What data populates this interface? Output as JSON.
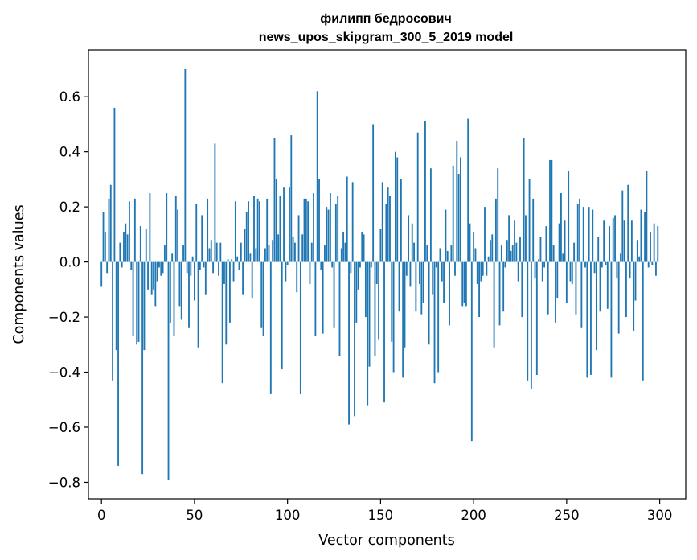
{
  "chart_data": {
    "type": "bar",
    "title_line1": "филипп бедросович",
    "title_line2": "news_upos_skipgram_300_5_2019 model",
    "xlabel": "Vector components",
    "ylabel": "Components values",
    "xlim": [
      -7,
      314
    ],
    "ylim": [
      -0.86,
      0.77
    ],
    "x_ticks": [
      {
        "value": 0,
        "label": "0"
      },
      {
        "value": 50,
        "label": "50"
      },
      {
        "value": 100,
        "label": "100"
      },
      {
        "value": 150,
        "label": "150"
      },
      {
        "value": 200,
        "label": "200"
      },
      {
        "value": 250,
        "label": "250"
      },
      {
        "value": 300,
        "label": "300"
      }
    ],
    "y_ticks": [
      {
        "value": 0.6,
        "label": "0.6"
      },
      {
        "value": 0.4,
        "label": "0.4"
      },
      {
        "value": 0.2,
        "label": "0.2"
      },
      {
        "value": 0.0,
        "label": "0.0"
      },
      {
        "value": -0.2,
        "label": "−0.2"
      },
      {
        "value": -0.4,
        "label": "−0.4"
      },
      {
        "value": -0.6,
        "label": "−0.6"
      },
      {
        "value": -0.8,
        "label": "−0.8"
      }
    ],
    "grid": false,
    "bar_color": "#1f77b4",
    "values": [
      -0.09,
      0.18,
      0.11,
      -0.04,
      0.23,
      0.28,
      -0.43,
      0.56,
      -0.32,
      -0.74,
      0.07,
      -0.02,
      0.11,
      0.14,
      0.1,
      0.22,
      -0.03,
      -0.27,
      0.23,
      -0.3,
      -0.29,
      0.13,
      -0.77,
      -0.32,
      0.12,
      -0.1,
      0.25,
      -0.12,
      -0.1,
      -0.16,
      -0.07,
      -0.02,
      -0.05,
      -0.04,
      0.06,
      0.25,
      -0.79,
      -0.22,
      0.03,
      -0.27,
      0.24,
      0.19,
      -0.16,
      -0.21,
      0.06,
      0.7,
      -0.04,
      -0.24,
      -0.05,
      0.02,
      -0.14,
      0.21,
      -0.31,
      -0.03,
      0.17,
      -0.02,
      -0.12,
      0.23,
      0.05,
      0.08,
      -0.04,
      0.43,
      0.07,
      -0.05,
      0.07,
      -0.44,
      -0.08,
      -0.3,
      0.01,
      -0.22,
      0.01,
      -0.07,
      0.22,
      0.02,
      -0.03,
      0.07,
      -0.12,
      0.12,
      0.18,
      0.22,
      0.03,
      -0.13,
      0.24,
      0.05,
      0.23,
      0.22,
      -0.24,
      -0.27,
      0.05,
      0.23,
      0.06,
      -0.48,
      0.08,
      0.45,
      0.3,
      0.1,
      0.24,
      -0.39,
      0.27,
      -0.07,
      -0.01,
      0.27,
      0.46,
      0.09,
      0.07,
      -0.11,
      0.17,
      -0.48,
      0.1,
      0.23,
      0.23,
      0.22,
      -0.08,
      0.07,
      0.25,
      -0.27,
      0.62,
      0.3,
      -0.03,
      -0.26,
      0.06,
      0.2,
      0.19,
      0.25,
      -0.02,
      -0.24,
      0.21,
      0.24,
      -0.34,
      0.05,
      0.11,
      0.07,
      0.31,
      -0.59,
      -0.04,
      0.29,
      -0.56,
      -0.22,
      -0.1,
      -0.02,
      0.11,
      0.1,
      -0.2,
      -0.52,
      -0.38,
      -0.02,
      0.5,
      -0.34,
      -0.08,
      -0.28,
      0.12,
      0.29,
      -0.51,
      0.21,
      0.27,
      0.24,
      -0.29,
      -0.4,
      0.4,
      0.38,
      -0.18,
      0.3,
      -0.42,
      -0.31,
      -0.05,
      0.17,
      -0.09,
      0.14,
      0.07,
      -0.18,
      0.47,
      -0.08,
      -0.19,
      -0.15,
      0.51,
      0.06,
      -0.3,
      0.34,
      -0.12,
      -0.44,
      -0.02,
      -0.4,
      0.05,
      -0.07,
      -0.15,
      0.19,
      0.04,
      -0.23,
      0.06,
      0.35,
      -0.05,
      0.44,
      0.32,
      0.38,
      -0.16,
      -0.15,
      -0.16,
      0.52,
      0.14,
      -0.65,
      0.11,
      0.05,
      -0.08,
      -0.2,
      -0.07,
      -0.05,
      0.2,
      -0.05,
      0.02,
      0.08,
      0.1,
      -0.31,
      0.23,
      0.34,
      -0.23,
      0.06,
      -0.18,
      -0.02,
      0.08,
      0.17,
      0.04,
      0.06,
      0.15,
      0.07,
      -0.07,
      0.09,
      -0.2,
      0.45,
      0.17,
      -0.43,
      0.3,
      -0.46,
      0.23,
      -0.06,
      -0.41,
      0.01,
      0.09,
      -0.07,
      -0.02,
      0.13,
      -0.19,
      0.37,
      0.37,
      0.06,
      -0.22,
      -0.13,
      0.14,
      0.25,
      0.03,
      0.15,
      -0.15,
      0.33,
      -0.07,
      -0.08,
      0.07,
      -0.19,
      0.21,
      0.23,
      -0.24,
      0.2,
      -0.02,
      -0.42,
      0.2,
      -0.41,
      0.19,
      -0.04,
      -0.32,
      0.09,
      -0.18,
      -0.02,
      0.15,
      -0.01,
      -0.17,
      0.13,
      -0.42,
      0.16,
      0.17,
      -0.06,
      -0.26,
      0.03,
      0.26,
      0.15,
      -0.2,
      0.28,
      -0.06,
      0.15,
      -0.25,
      -0.14,
      0.08,
      0.02,
      0.19,
      -0.43,
      0.18,
      0.33,
      -0.02,
      0.11,
      -0.01,
      0.14,
      -0.05,
      0.13
    ]
  }
}
